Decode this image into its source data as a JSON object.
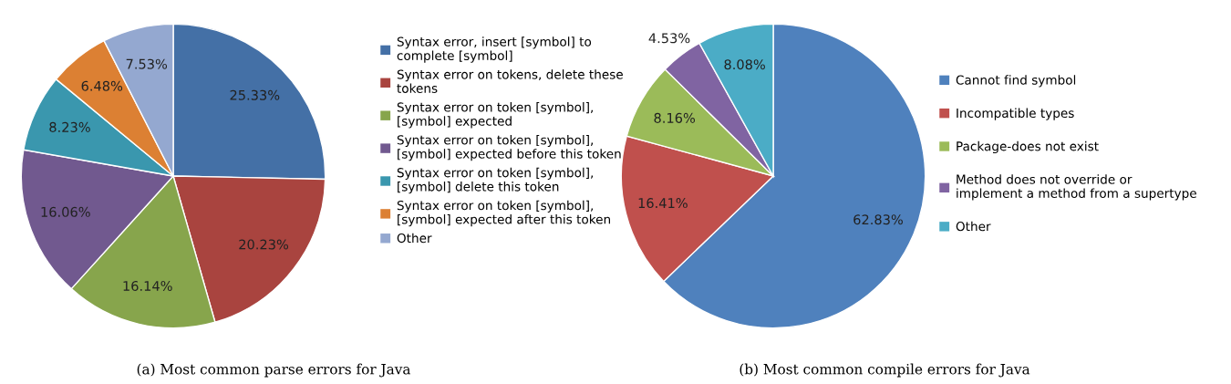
{
  "chart_data": [
    {
      "type": "pie",
      "title": "(a) Most common parse errors for Java",
      "legend": "right",
      "categories": [
        "Syntax error, insert [symbol] to\ncomplete [symbol]",
        "Syntax error on tokens, delete these\ntokens",
        "Syntax error on token [symbol],\n[symbol] expected",
        "Syntax error on token [symbol],\n[symbol] expected before this token",
        "Syntax error on token [symbol],\n[symbol] delete this token",
        "Syntax error on token [symbol],\n[symbol] expected after this token",
        "Other"
      ],
      "values": [
        25.33,
        20.23,
        16.14,
        16.06,
        8.23,
        6.48,
        7.53
      ],
      "value_labels": [
        "25.33%",
        "20.23%",
        "16.14%",
        "16.06%",
        "8.23%",
        "6.48%",
        "7.53%"
      ],
      "colors": [
        "#4470a6",
        "#a9443f",
        "#87a54c",
        "#71598f",
        "#3a97ae",
        "#dc8033",
        "#94a8d0"
      ]
    },
    {
      "type": "pie",
      "title": "(b) Most common compile errors for Java",
      "legend": "right",
      "categories": [
        "Cannot find symbol",
        "Incompatible types",
        "Package-does not exist",
        "Method does not override or\nimplement a method from a supertype",
        "Other"
      ],
      "values": [
        62.83,
        16.41,
        8.16,
        4.53,
        8.08
      ],
      "value_labels": [
        "62.83%",
        "16.41%",
        "8.16%",
        "4.53%",
        "8.08%"
      ],
      "colors": [
        "#4f81bd",
        "#c0504d",
        "#9bbb59",
        "#8064a2",
        "#4bacc6"
      ]
    }
  ]
}
